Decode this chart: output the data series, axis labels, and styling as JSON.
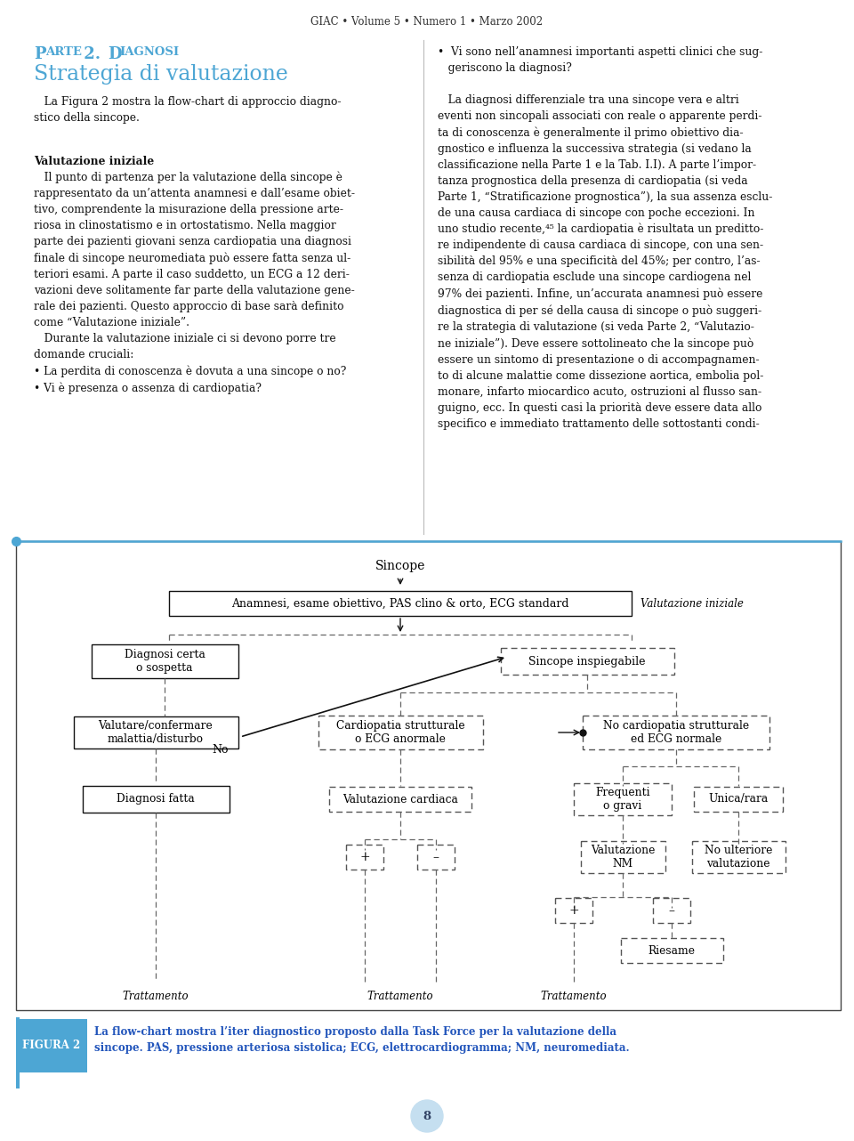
{
  "page_title": "GIAC • Volume 5 • Numero 1 • Marzo 2002",
  "page_number": "8",
  "background_color": "#ffffff",
  "left_col_title1": "Parte 2. Diagnosi",
  "left_col_title2": "Strategia di valutazione",
  "left_col_para1": "   La Figura 2 mostra la flow-chart di approccio diagno-\nstico della sincope.",
  "val_iniziale_bold": "Valutazione iniziale",
  "left_col_para2": "   Il punto di partenza per la valutazione della sincope è\nrappresentato da un’attenta anamnesi e dall’esame obiet-\ntivo, comprendente la misurazione della pressione arte-\nriosa in clinostatismo e in ortostatismo. Nella maggior\nparte dei pazienti giovani senza cardiopatia una diagnosi\nfinale di sincope neuromediata può essere fatta senza ul-\nteriori esami. A parte il caso suddetto, un ECG a 12 deri-\nvazioni deve solitamente far parte della valutazione gene-\nrale dei pazienti. Questo approccio di base sarà definito\ncome “Valutazione iniziale”.\n   Durante la valutazione iniziale ci si devono porre tre\ndomande cruciali:\n• La perdita di conoscenza è dovuta a una sincope o no?\n• Vi è presenza o assenza di cardiopatia?",
  "right_col_para1": "•  Vi sono nell’anamnesi importanti aspetti clinici che sug-\n   geriscono la diagnosi?\n\n   La diagnosi differenziale tra una sincope vera e altri\neventi non sincopali associati con reale o apparente perdi-\nta di conoscenza è generalmente il primo obiettivo dia-\ngnostico e influenza la successiva strategia (si vedano la\nclassificazione nella Parte 1 e la Tab. I.I). A parte l’impor-\ntanza prognostica della presenza di cardiopatia (si veda\nParte 1, “Stratificazione prognostica”), la sua assenza esclu-\nde una causa cardiaca di sincope con poche eccezioni. In\nuno studio recente,⁴⁵ la cardiopatia è risultata un preditto-\nre indipendente di causa cardiaca di sincope, con una sen-\nsibilità del 95% e una specificità del 45%; per contro, l’as-\nsenza di cardiopatia esclude una sincope cardiogena nel\n97% dei pazienti. Infine, un’accurata anamnesi può essere\ndiagnostica di per sé della causa di sincope o può suggeri-\nre la strategia di valutazione (si veda Parte 2, “Valutazio-\nne iniziale”). Deve essere sottolineato che la sincope può\nessere un sintomo di presentazione o di accompagnamen-\nto di alcune malattie come dissezione aortica, embolia pol-\nmonare, infarto miocardico acuto, ostruzioni al flusso san-\nguigno, ecc. In questi casi la priorità deve essere data allo\nspecifico e immediato trattamento delle sottostanti condi-",
  "figura_label": "FIGURA 2",
  "figura_caption": "La flow-chart mostra l’iter diagnostico proposto dalla Task Force per la valutazione della\nsincope. PAS, pressione arteriosa sistolica; ECG, elettrocardiogramma; NM, neuromediata.",
  "valutazione_label": "Valutazione iniziale",
  "flowchart_title": "Sincope",
  "box1": "Anamnesi, esame obiettivo, PAS clino & orto, ECG standard",
  "box_left1": "Diagnosi certa\no sospetta",
  "box_left2": "Valutare/confermare\nmalattia/disturbo",
  "box_left3": "Diagnosi fatta",
  "box_center1": "Sincope inspiegabile",
  "box_center2": "Cardiopatia strutturale\no ECG anormale",
  "box_center3": "Valutazione cardiaca",
  "box_right1": "No cardiopatia strutturale\ned ECG normale",
  "box_right2a": "Frequenti\no gravi",
  "box_right2b": "Unica/rara",
  "box_right3a": "Valutazione\nNM",
  "box_right3b": "No ulteriore\nvalutazione",
  "box_riesame": "Riesame",
  "label_no": "No",
  "label_plus1": "+",
  "label_minus1": "–",
  "label_plus2": "+",
  "label_minus2": "–",
  "trattamento1": "Trattamento",
  "trattamento2": "Trattamento",
  "trattamento3": "Trattamento",
  "accent_color": "#4da6d4",
  "title_color": "#4da6d4",
  "box_border": "#000000",
  "dashed_border": "#888888",
  "figura_bg": "#4da6d4",
  "figura_text_color": "#ffffff",
  "caption_text_color": "#2255bb",
  "separator_color": "#bbbbbb"
}
